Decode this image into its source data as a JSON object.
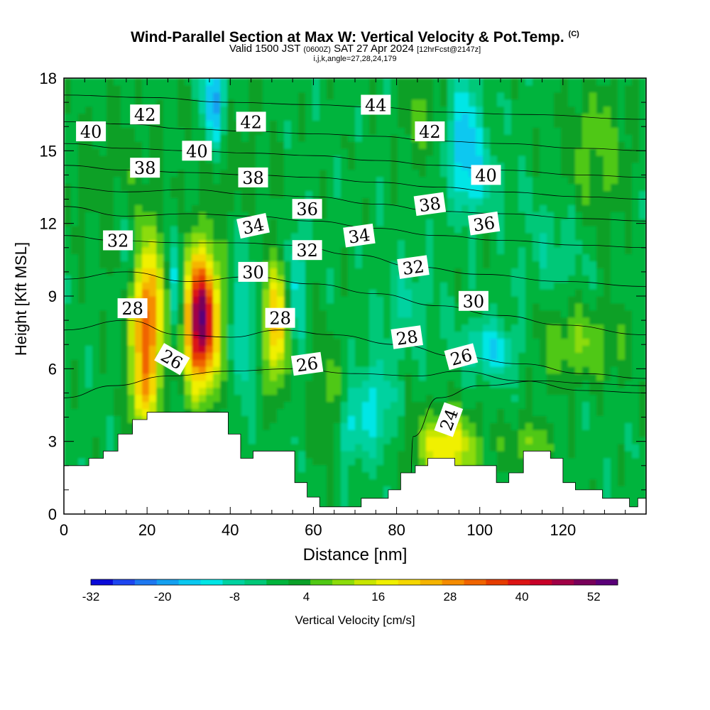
{
  "title": {
    "main": "Wind-Parallel Section at Max W: Vertical Velocity & Pot.Temp.",
    "copyright": "(C)",
    "valid_prefix": "Valid 1500 JST",
    "valid_utc": "(0600Z)",
    "valid_date": "SAT 27 Apr 2024",
    "forecast": "[12hrFcst@2147z]",
    "indices": "i,j,k,angle=27,28,24,179"
  },
  "chart_data": {
    "type": "heatmap",
    "xlabel": "Distance [nm]",
    "ylabel": "Height [Kft MSL]",
    "xlim": [
      0,
      140
    ],
    "ylim": [
      0,
      18
    ],
    "x_ticks": [
      0,
      20,
      40,
      60,
      80,
      100,
      120
    ],
    "y_ticks": [
      0,
      3,
      6,
      9,
      12,
      15,
      18
    ],
    "colorbar": {
      "label": "Vertical Velocity [cm/s]",
      "tick_labels": [
        -32,
        -20,
        -8,
        4,
        16,
        28,
        40,
        52
      ],
      "min": -32,
      "max": 56,
      "step": 4,
      "colors": [
        "#0a0ad8",
        "#1e46f0",
        "#1e78f0",
        "#14a0f0",
        "#0ac8f0",
        "#00e6e6",
        "#00d2a0",
        "#00c878",
        "#00b43c",
        "#0aa028",
        "#50c814",
        "#8cdc0a",
        "#c8e600",
        "#f0f000",
        "#f5d700",
        "#f5b400",
        "#f58c00",
        "#f06400",
        "#e63c00",
        "#dc1414",
        "#c80028",
        "#a00046",
        "#78005a",
        "#5a0078"
      ]
    },
    "theta_contours": [
      {
        "label": "24",
        "points": [
          [
            83,
            0
          ],
          [
            84,
            3.2
          ],
          [
            90,
            4.8
          ],
          [
            100,
            5.3
          ],
          [
            115,
            5.5
          ],
          [
            125,
            5.4
          ],
          [
            140,
            5.3
          ]
        ]
      },
      {
        "label": "26",
        "points": [
          [
            0,
            4.8
          ],
          [
            12,
            5.3
          ],
          [
            25,
            5.7
          ],
          [
            40,
            5.9
          ],
          [
            55,
            6.0
          ],
          [
            70,
            5.8
          ],
          [
            85,
            5.7
          ],
          [
            95,
            5.9
          ],
          [
            110,
            5.5
          ],
          [
            125,
            5.1
          ],
          [
            140,
            5.0
          ]
        ]
      },
      {
        "label": "28",
        "points": [
          [
            0,
            7.6
          ],
          [
            15,
            8.0
          ],
          [
            28,
            7.4
          ],
          [
            40,
            7.3
          ],
          [
            52,
            7.6
          ],
          [
            65,
            7.4
          ],
          [
            80,
            7.0
          ],
          [
            95,
            6.5
          ],
          [
            110,
            6.2
          ],
          [
            125,
            5.8
          ],
          [
            140,
            5.6
          ]
        ]
      },
      {
        "label": "30",
        "points": [
          [
            0,
            9.7
          ],
          [
            15,
            10.0
          ],
          [
            30,
            9.6
          ],
          [
            45,
            9.8
          ],
          [
            60,
            9.5
          ],
          [
            75,
            9.1
          ],
          [
            90,
            8.6
          ],
          [
            105,
            8.2
          ],
          [
            120,
            7.8
          ],
          [
            140,
            7.4
          ]
        ]
      },
      {
        "label": "32",
        "points": [
          [
            0,
            11.5
          ],
          [
            12,
            11.3
          ],
          [
            28,
            11.2
          ],
          [
            42,
            11.2
          ],
          [
            55,
            11.1
          ],
          [
            70,
            10.7
          ],
          [
            85,
            10.2
          ],
          [
            100,
            9.9
          ],
          [
            120,
            9.6
          ],
          [
            140,
            9.4
          ]
        ]
      },
      {
        "label": "34",
        "points": [
          [
            0,
            12.7
          ],
          [
            15,
            12.3
          ],
          [
            30,
            12.4
          ],
          [
            45,
            12.3
          ],
          [
            60,
            12.1
          ],
          [
            75,
            11.8
          ],
          [
            90,
            11.5
          ],
          [
            105,
            11.3
          ],
          [
            125,
            11.1
          ],
          [
            140,
            11.0
          ]
        ]
      },
      {
        "label": "36",
        "points": [
          [
            0,
            13.5
          ],
          [
            15,
            13.3
          ],
          [
            30,
            13.4
          ],
          [
            45,
            13.2
          ],
          [
            60,
            13.1
          ],
          [
            75,
            12.8
          ],
          [
            90,
            12.5
          ],
          [
            105,
            12.4
          ],
          [
            125,
            12.2
          ],
          [
            140,
            12.1
          ]
        ]
      },
      {
        "label": "38",
        "points": [
          [
            0,
            14.4
          ],
          [
            15,
            14.2
          ],
          [
            30,
            14.1
          ],
          [
            45,
            14.0
          ],
          [
            60,
            13.9
          ],
          [
            75,
            13.7
          ],
          [
            90,
            13.5
          ],
          [
            105,
            13.3
          ],
          [
            125,
            13.1
          ],
          [
            140,
            13.0
          ]
        ]
      },
      {
        "label": "40",
        "points": [
          [
            0,
            15.3
          ],
          [
            15,
            15.1
          ],
          [
            30,
            15.0
          ],
          [
            45,
            14.9
          ],
          [
            60,
            14.8
          ],
          [
            75,
            14.6
          ],
          [
            90,
            14.4
          ],
          [
            105,
            14.2
          ],
          [
            125,
            14.0
          ],
          [
            140,
            13.9
          ]
        ]
      },
      {
        "label": "42",
        "points": [
          [
            0,
            16.2
          ],
          [
            15,
            16.1
          ],
          [
            30,
            15.9
          ],
          [
            45,
            15.8
          ],
          [
            60,
            15.7
          ],
          [
            75,
            15.6
          ],
          [
            90,
            15.4
          ],
          [
            105,
            15.3
          ],
          [
            125,
            15.1
          ],
          [
            140,
            15.0
          ]
        ]
      },
      {
        "label": "44",
        "points": [
          [
            0,
            17.3
          ],
          [
            20,
            17.2
          ],
          [
            40,
            17.0
          ],
          [
            60,
            16.9
          ],
          [
            75,
            16.8
          ],
          [
            90,
            16.6
          ],
          [
            110,
            16.5
          ],
          [
            140,
            16.3
          ]
        ]
      }
    ],
    "contour_labels": [
      {
        "text": "40",
        "x": 6.5,
        "y": 15.8,
        "angle": 0
      },
      {
        "text": "42",
        "x": 19.5,
        "y": 16.5,
        "angle": 0
      },
      {
        "text": "42",
        "x": 45,
        "y": 16.2,
        "angle": 0
      },
      {
        "text": "44",
        "x": 75,
        "y": 16.9,
        "angle": 0
      },
      {
        "text": "42",
        "x": 88,
        "y": 15.8,
        "angle": 0
      },
      {
        "text": "40",
        "x": 32,
        "y": 15.0,
        "angle": 0
      },
      {
        "text": "38",
        "x": 19.5,
        "y": 14.3,
        "angle": 0
      },
      {
        "text": "38",
        "x": 45.5,
        "y": 13.9,
        "angle": 0
      },
      {
        "text": "40",
        "x": 101.5,
        "y": 14.0,
        "angle": 0
      },
      {
        "text": "38",
        "x": 88,
        "y": 12.8,
        "angle": -8
      },
      {
        "text": "36",
        "x": 58.5,
        "y": 12.6,
        "angle": 0
      },
      {
        "text": "36",
        "x": 101,
        "y": 12.0,
        "angle": -8
      },
      {
        "text": "34",
        "x": 45.5,
        "y": 11.9,
        "angle": -12
      },
      {
        "text": "34",
        "x": 71,
        "y": 11.5,
        "angle": -8
      },
      {
        "text": "32",
        "x": 13,
        "y": 11.3,
        "angle": 0
      },
      {
        "text": "32",
        "x": 58.5,
        "y": 10.9,
        "angle": 0
      },
      {
        "text": "32",
        "x": 84,
        "y": 10.2,
        "angle": -8
      },
      {
        "text": "30",
        "x": 45.5,
        "y": 10.0,
        "angle": 0
      },
      {
        "text": "30",
        "x": 98.5,
        "y": 8.8,
        "angle": 0
      },
      {
        "text": "28",
        "x": 16.5,
        "y": 8.5,
        "angle": 0
      },
      {
        "text": "28",
        "x": 52,
        "y": 8.1,
        "angle": 0
      },
      {
        "text": "28",
        "x": 82.5,
        "y": 7.3,
        "angle": -8
      },
      {
        "text": "26",
        "x": 26,
        "y": 6.4,
        "angle": 30
      },
      {
        "text": "26",
        "x": 58.5,
        "y": 6.2,
        "angle": -8
      },
      {
        "text": "26",
        "x": 95.5,
        "y": 6.5,
        "angle": -15
      },
      {
        "text": "24",
        "x": 92.5,
        "y": 3.9,
        "angle": -70
      }
    ],
    "w_features": [
      {
        "x": 20,
        "y": 8.0,
        "sx": 4.0,
        "sy": 3.0,
        "w": 36
      },
      {
        "x": 19,
        "y": 4.8,
        "sx": 3.0,
        "sy": 1.6,
        "w": 16
      },
      {
        "x": 33,
        "y": 8.0,
        "sx": 4.0,
        "sy": 2.7,
        "w": 58
      },
      {
        "x": 51,
        "y": 7.8,
        "sx": 2.6,
        "sy": 2.5,
        "w": 28
      },
      {
        "x": 92,
        "y": 2.8,
        "sx": 7.0,
        "sy": 1.4,
        "w": 22
      },
      {
        "x": 112,
        "y": 2.9,
        "sx": 6.0,
        "sy": 1.0,
        "w": 10
      },
      {
        "x": 124,
        "y": 7.0,
        "sx": 12.0,
        "sy": 1.6,
        "w": 10
      },
      {
        "x": 40,
        "y": 14.5,
        "sx": 10.0,
        "sy": 3.0,
        "w": 4
      },
      {
        "x": 12,
        "y": 13.5,
        "sx": 12.0,
        "sy": 4.0,
        "w": 4
      },
      {
        "x": 86,
        "y": 16.5,
        "sx": 6.0,
        "sy": 2.0,
        "w": 6
      },
      {
        "x": 128,
        "y": 15.0,
        "sx": 8.0,
        "sy": 3.0,
        "w": 8
      },
      {
        "x": 63,
        "y": 5.0,
        "sx": 3.5,
        "sy": 2.5,
        "w": 8
      },
      {
        "x": 27,
        "y": 9.2,
        "sx": 1.6,
        "sy": 2.4,
        "w": -18
      },
      {
        "x": 43,
        "y": 8.0,
        "sx": 2.2,
        "sy": 3.0,
        "w": -12
      },
      {
        "x": 56,
        "y": 9.5,
        "sx": 2.0,
        "sy": 2.5,
        "w": -12
      },
      {
        "x": 15.5,
        "y": 10.5,
        "sx": 1.6,
        "sy": 2.0,
        "w": -12
      },
      {
        "x": 36,
        "y": 17.0,
        "sx": 2.6,
        "sy": 1.8,
        "w": -22
      },
      {
        "x": 96,
        "y": 15.8,
        "sx": 4.0,
        "sy": 2.2,
        "w": -16
      },
      {
        "x": 103,
        "y": 6.8,
        "sx": 7.0,
        "sy": 1.1,
        "w": -14
      },
      {
        "x": 75,
        "y": 4.5,
        "sx": 4.0,
        "sy": 2.0,
        "w": -12
      },
      {
        "x": 69,
        "y": 3.6,
        "sx": 3.0,
        "sy": 1.4,
        "w": -10
      },
      {
        "x": 83,
        "y": 8.5,
        "sx": 6.0,
        "sy": 2.0,
        "w": -6
      },
      {
        "x": 118,
        "y": 11.0,
        "sx": 8.0,
        "sy": 2.0,
        "w": -5
      },
      {
        "x": 99,
        "y": 13.8,
        "sx": 5.0,
        "sy": 1.5,
        "w": -10
      }
    ],
    "terrain_kft": [
      [
        0,
        2.0
      ],
      [
        6,
        2.0
      ],
      [
        6,
        2.3
      ],
      [
        9.5,
        2.3
      ],
      [
        9.5,
        2.6
      ],
      [
        13,
        2.6
      ],
      [
        13,
        3.3
      ],
      [
        16.5,
        3.3
      ],
      [
        16.5,
        3.9
      ],
      [
        20,
        3.9
      ],
      [
        20,
        4.2
      ],
      [
        39.5,
        4.2
      ],
      [
        39.5,
        3.3
      ],
      [
        42.5,
        3.3
      ],
      [
        42.5,
        2.3
      ],
      [
        45.5,
        2.3
      ],
      [
        45.5,
        2.6
      ],
      [
        55.5,
        2.6
      ],
      [
        55.5,
        1.3
      ],
      [
        58.5,
        1.3
      ],
      [
        58.5,
        0.7
      ],
      [
        61.5,
        0.7
      ],
      [
        61.5,
        0.3
      ],
      [
        71.5,
        0.3
      ],
      [
        71.5,
        0.65
      ],
      [
        78,
        0.65
      ],
      [
        78,
        1.0
      ],
      [
        81,
        1.0
      ],
      [
        81,
        1.7
      ],
      [
        84.5,
        1.7
      ],
      [
        84.5,
        2.0
      ],
      [
        87.5,
        2.0
      ],
      [
        87.5,
        2.3
      ],
      [
        94,
        2.3
      ],
      [
        94,
        2.0
      ],
      [
        104,
        2.0
      ],
      [
        104,
        1.3
      ],
      [
        107,
        1.3
      ],
      [
        107,
        1.7
      ],
      [
        110.5,
        1.7
      ],
      [
        110.5,
        2.6
      ],
      [
        117,
        2.6
      ],
      [
        117,
        2.3
      ],
      [
        120,
        2.3
      ],
      [
        120,
        1.3
      ],
      [
        123,
        1.3
      ],
      [
        123,
        1.0
      ],
      [
        129.5,
        1.0
      ],
      [
        129.5,
        0.65
      ],
      [
        136,
        0.65
      ],
      [
        136,
        0.3
      ],
      [
        138,
        0.3
      ],
      [
        138,
        0.65
      ],
      [
        140,
        0.65
      ],
      [
        140,
        0
      ]
    ]
  }
}
